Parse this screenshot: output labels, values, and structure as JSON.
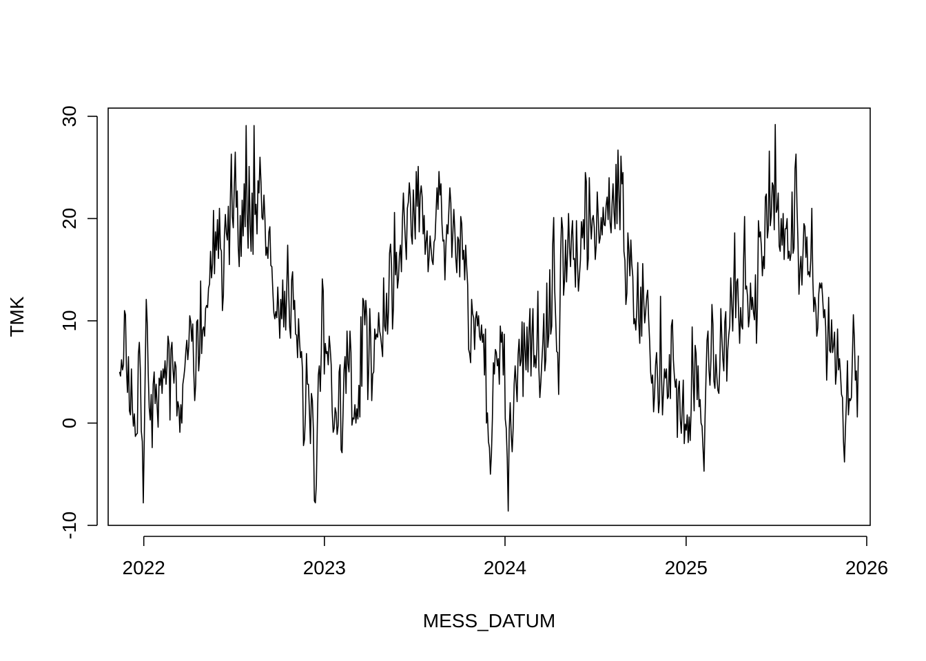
{
  "chart_data": {
    "type": "line",
    "title": "",
    "xlabel": "MESS_DATUM",
    "ylabel": "TMK",
    "x_range": [
      "2021-11-13",
      "2025-12-15"
    ],
    "xlim": [
      "2021-10-21",
      "2026-01-08"
    ],
    "ylim": [
      -10,
      30.8
    ],
    "x_ticks": [
      "2022",
      "2023",
      "2024",
      "2025",
      "2026"
    ],
    "y_ticks": [
      "-10",
      "0",
      "10",
      "20",
      "30"
    ],
    "grid": false,
    "legend": "none",
    "series": [
      {
        "color": "#000000",
        "values": [
          5.0,
          4.6,
          6.2,
          5.2,
          5.7,
          11.0,
          10.6,
          5.2,
          3.0,
          6.5,
          1.2,
          0.8,
          5.3,
          1.4,
          -0.3,
          0.9,
          -1.3,
          -1.1,
          -1.0,
          6.7,
          7.9,
          5.3,
          -0.8,
          -1.8,
          -7.8,
          -1.6,
          5.5,
          12.1,
          9.8,
          4.8,
          1.5,
          0.3,
          2.8,
          -2.4,
          3.8,
          5.0,
          1.9,
          3.8,
          1.6,
          -0.4,
          4.4,
          3.7,
          5.1,
          2.9,
          5.3,
          4.4,
          6.1,
          3.8,
          5.6,
          8.5,
          7.7,
          0.3,
          7.2,
          7.9,
          5.3,
          3.9,
          6.0,
          5.5,
          0.7,
          2.1,
          1.5,
          -0.9,
          1.8,
          0.0,
          3.8,
          4.5,
          5.4,
          7.0,
          8.1,
          6.2,
          7.5,
          10.5,
          9.9,
          8.0,
          9.7,
          5.1,
          2.2,
          3.8,
          9.9,
          10.1,
          5.1,
          6.6,
          13.9,
          6.8,
          9.1,
          9.4,
          8.5,
          11.2,
          11.5,
          11.3,
          13.2,
          13.6,
          16.8,
          14.2,
          15.6,
          20.8,
          14.6,
          18.7,
          16.9,
          19.9,
          16.1,
          21.0,
          17.1,
          16.8,
          11.0,
          12.5,
          18.3,
          20.4,
          18.6,
          17.9,
          21.2,
          15.5,
          21.6,
          26.3,
          20.2,
          19.1,
          23.1,
          26.5,
          21.1,
          22.7,
          17.3,
          15.3,
          20.3,
          16.3,
          21.8,
          18.3,
          23.4,
          19.2,
          29.1,
          20.5,
          17.1,
          25.1,
          19.4,
          16.8,
          22.5,
          16.5,
          29.1,
          20.4,
          21.4,
          18.5,
          23.7,
          22.5,
          26.0,
          23.6,
          20.1,
          19.9,
          22.3,
          20.0,
          16.4,
          17.2,
          16.1,
          18.7,
          19.2,
          15.4,
          15.3,
          12.9,
          10.8,
          10.2,
          10.9,
          10.3,
          13.3,
          10.8,
          8.3,
          12.1,
          10.2,
          14.0,
          9.4,
          12.9,
          9.1,
          12.8,
          17.4,
          13.0,
          9.4,
          8.3,
          14.0,
          14.8,
          11.1,
          12.0,
          8.7,
          8.6,
          6.4,
          10.2,
          8.0,
          6.4,
          7.0,
          5.1,
          -2.2,
          -1.6,
          0.9,
          6.8,
          3.8,
          3.8,
          1.1,
          -2.0,
          2.9,
          2.2,
          -0.7,
          -7.6,
          -7.8,
          -6.0,
          -0.1,
          4.7,
          5.6,
          3.1,
          6.9,
          14.1,
          12.9,
          4.8,
          7.8,
          6.8,
          7.0,
          5.7,
          8.5,
          7.3,
          5.7,
          1.2,
          -0.9,
          -0.5,
          1.5,
          1.0,
          -1.1,
          -0.3,
          5.0,
          5.7,
          -2.6,
          -2.9,
          1.0,
          5.2,
          6.5,
          2.9,
          9.0,
          5.8,
          5.0,
          9.0,
          6.9,
          -0.2,
          0.5,
          0.4,
          1.8,
          0.0,
          1.4,
          0.4,
          3.7,
          0.6,
          10.4,
          3.6,
          12.2,
          11.9,
          9.6,
          12.0,
          10.4,
          2.3,
          5.6,
          11.2,
          8.3,
          2.2,
          4.8,
          5.0,
          9.2,
          8.2,
          8.7,
          8.4,
          10.8,
          9.0,
          8.5,
          7.5,
          6.5,
          14.2,
          9.5,
          9.0,
          12.7,
          8.7,
          11.1,
          16.6,
          17.5,
          15.5,
          9.2,
          11.4,
          20.6,
          14.5,
          16.7,
          13.2,
          14.1,
          16.4,
          17.4,
          14.8,
          19.8,
          22.5,
          20.0,
          17.9,
          16.0,
          21.0,
          21.6,
          23.5,
          22.1,
          18.4,
          17.5,
          22.8,
          20.4,
          18.0,
          24.6,
          21.2,
          25.1,
          18.7,
          22.3,
          23.2,
          22.1,
          18.5,
          20.3,
          16.5,
          17.8,
          18.8,
          14.8,
          16.2,
          18.3,
          17.0,
          15.9,
          15.5,
          17.7,
          18.0,
          20.5,
          23.0,
          20.9,
          24.6,
          22.3,
          23.4,
          19.5,
          17.8,
          17.9,
          14.0,
          17.3,
          19.4,
          18.5,
          20.8,
          23.0,
          21.5,
          16.2,
          18.5,
          20.9,
          18.9,
          16.1,
          14.7,
          18.2,
          17.9,
          14.3,
          20.2,
          19.5,
          16.0,
          16.9,
          14.0,
          17.4,
          15.3,
          13.5,
          7.2,
          6.8,
          5.9,
          12.1,
          10.7,
          10.3,
          7.2,
          10.2,
          10.9,
          9.5,
          10.5,
          8.5,
          8.1,
          9.6,
          7.9,
          8.7,
          4.7,
          9.2,
          0.0,
          1.0,
          -1.8,
          -2.4,
          -5.0,
          -3.1,
          0.4,
          5.9,
          4.8,
          7.2,
          6.9,
          5.6,
          6.3,
          3.8,
          9.5,
          7.9,
          8.9,
          4.7,
          8.7,
          0.4,
          -0.5,
          -3.4,
          -8.6,
          -0.7,
          2.0,
          -1.1,
          -2.8,
          -0.5,
          3.8,
          5.6,
          3.8,
          2.1,
          6.7,
          8.2,
          5.6,
          6.1,
          9.9,
          2.6,
          9.8,
          7.2,
          5.2,
          9.4,
          5.0,
          8.9,
          11.2,
          4.6,
          8.5,
          11.2,
          5.5,
          6.6,
          5.4,
          7.2,
          12.9,
          5.3,
          2.5,
          4.0,
          6.0,
          7.9,
          10.7,
          5.1,
          6.2,
          13.7,
          7.4,
          8.5,
          15.0,
          8.7,
          9.5,
          17.5,
          20.1,
          13.0,
          10.2,
          7.0,
          6.9,
          2.8,
          8.7,
          16.5,
          20.1,
          19.0,
          12.5,
          14.0,
          17.9,
          13.8,
          16.6,
          20.5,
          17.2,
          15.3,
          18.4,
          19.8,
          16.0,
          16.1,
          13.3,
          19.8,
          15.7,
          12.9,
          14.4,
          15.9,
          19.7,
          18.1,
          19.9,
          17.0,
          24.5,
          23.6,
          15.0,
          16.1,
          24.0,
          20.0,
          18.0,
          19.9,
          20.3,
          19.1,
          16.0,
          17.4,
          22.6,
          20.3,
          17.6,
          18.1,
          20.1,
          18.4,
          21.1,
          19.4,
          19.3,
          21.3,
          22.1,
          19.9,
          24.0,
          19.6,
          18.6,
          21.4,
          23.4,
          20.6,
          19.0,
          25.3,
          19.5,
          26.7,
          22.3,
          18.9,
          26.1,
          23.4,
          24.5,
          16.8,
          15.9,
          11.6,
          12.7,
          18.6,
          16.9,
          14.4,
          17.9,
          15.5,
          14.3,
          9.7,
          10.2,
          9.1,
          11.0,
          15.7,
          9.9,
          7.8,
          13.3,
          8.5,
          15.6,
          12.1,
          9.8,
          10.9,
          12.3,
          13.0,
          10.2,
          8.0,
          5.0,
          3.9,
          4.7,
          1.1,
          2.8,
          5.7,
          6.9,
          4.4,
          1.0,
          2.2,
          12.4,
          4.7,
          0.8,
          3.1,
          5.3,
          4.4,
          5.3,
          2.4,
          2.6,
          6.7,
          2.4,
          9.5,
          10.1,
          6.2,
          4.6,
          3.5,
          4.3,
          -1.4,
          3.3,
          4.1,
          0.4,
          -1.0,
          1.5,
          4.2,
          -2.0,
          -0.1,
          -0.7,
          0.8,
          -1.9,
          0.6,
          -1.7,
          1.4,
          9.4,
          4.5,
          1.2,
          7.6,
          6.8,
          2.3,
          5.6,
          1.6,
          2.3,
          0.0,
          -0.3,
          -2.5,
          -4.7,
          0.4,
          4.5,
          8.1,
          9.0,
          5.2,
          3.7,
          6.2,
          11.6,
          9.7,
          4.1,
          3.4,
          6.7,
          4.5,
          3.2,
          2.9,
          5.7,
          11.2,
          8.4,
          6.3,
          5.1,
          9.9,
          10.9,
          4.1,
          7.2,
          8.6,
          9.5,
          14.2,
          11.8,
          9.0,
          13.2,
          18.6,
          10.3,
          13.8,
          14.1,
          10.6,
          7.8,
          11.3,
          9.5,
          9.2,
          16.0,
          20.2,
          13.1,
          13.4,
          12.4,
          9.4,
          10.5,
          13.7,
          11.1,
          12.3,
          10.8,
          10.1,
          14.5,
          7.8,
          11.3,
          19.8,
          18.2,
          18.7,
          17.2,
          14.4,
          16.3,
          15.1,
          22.1,
          22.4,
          18.1,
          19.0,
          26.6,
          19.3,
          20.3,
          23.5,
          23.2,
          18.9,
          29.2,
          20.6,
          20.9,
          22.5,
          17.3,
          16.8,
          20.0,
          17.4,
          20.5,
          16.0,
          19.0,
          19.0,
          20.0,
          16.1,
          16.8,
          15.9,
          16.6,
          22.6,
          16.6,
          17.1,
          24.9,
          26.3,
          21.1,
          17.7,
          12.6,
          15.0,
          16.3,
          13.5,
          16.4,
          19.5,
          19.2,
          16.2,
          18.2,
          14.5,
          14.8,
          14.3,
          16.1,
          21.0,
          14.1,
          10.9,
          12.3,
          11.4,
          8.5,
          9.3,
          12.6,
          13.7,
          13.2,
          13.7,
          12.1,
          10.3,
          11.1,
          9.4,
          4.2,
          7.5,
          12.3,
          7.1,
          6.9,
          10.1,
          6.9,
          7.6,
          8.9,
          3.8,
          5.1,
          9.2,
          5.2,
          6.3,
          4.8,
          2.8,
          2.5,
          -1.8,
          -3.8,
          -0.5,
          2.1,
          6.1,
          0.8,
          2.4,
          2.2,
          2.5,
          6.4,
          10.6,
          8.3,
          4.2,
          5.1,
          0.6,
          6.6
        ]
      }
    ]
  }
}
